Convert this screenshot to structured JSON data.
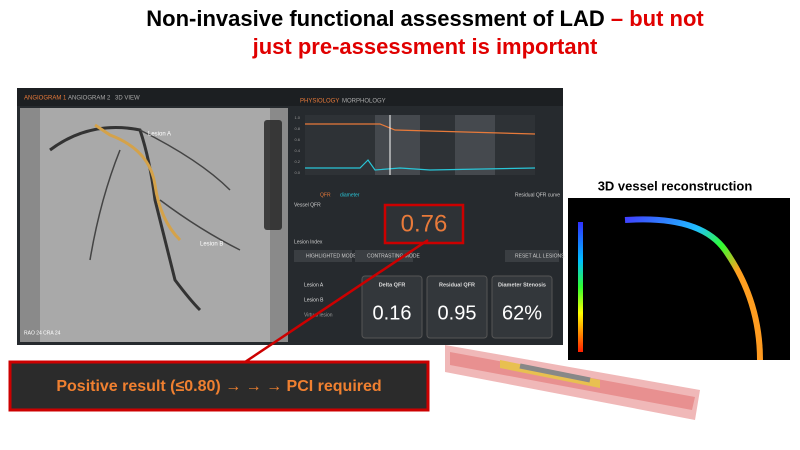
{
  "header": {
    "title_black": "Non-invasive functional assessment of LAD",
    "title_red_1": "– but not",
    "title_red_2": "just pre-assessment is important"
  },
  "app": {
    "tabs": [
      "ANGIOGRAM 1",
      "ANGIOGRAM 2",
      "3D VIEW"
    ],
    "right_tabs": [
      "PHYSIOLOGY",
      "MORPHOLOGY"
    ],
    "angio_labels": [
      "Lesion A",
      "Lesion B"
    ],
    "view": "RAO 24 CRA 24",
    "plot_yticks": [
      "1.0",
      "0.8",
      "0.6",
      "0.4",
      "0.2",
      "0.0"
    ],
    "legend": [
      "QFR",
      "diameter"
    ],
    "curve_btn": "Residual QFR curve",
    "vessel_label": "Vessel QFR",
    "vessel_qfr": "0.76",
    "lesion_label": "Lesion Index",
    "modes": [
      "HIGHLIGHTED MODE",
      "CONTRASTING MODE"
    ],
    "reset": "RESET ALL LESIONS",
    "lesions": [
      "Lesion A",
      "Lesion B",
      "Virtual lesion"
    ],
    "cards": [
      {
        "label": "Delta QFR",
        "value": "0.16"
      },
      {
        "label": "Residual QFR",
        "value": "0.95"
      },
      {
        "label": "Diameter Stenosis",
        "value": "62%"
      }
    ]
  },
  "recon_title": "3D vessel reconstruction",
  "callout": "Positive result (≤0.80) → → → PCI required"
}
